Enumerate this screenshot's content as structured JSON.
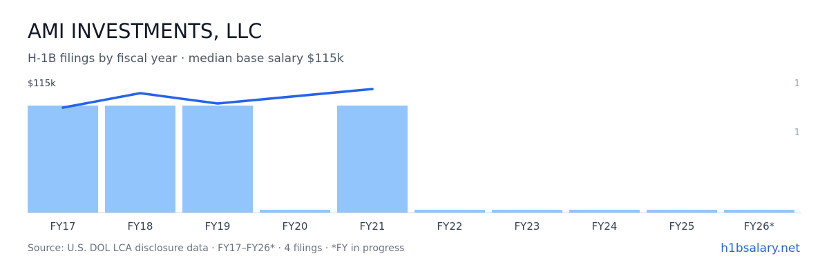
{
  "header": {
    "title": "AMI INVESTMENTS, LLC",
    "subtitle": "H-1B filings by fiscal year · median base salary $115k"
  },
  "footer": {
    "source": "Source: U.S. DOL LCA disclosure data · FY17–FY26* · 4 filings · *FY in progress",
    "brand": "h1bsalary.net"
  },
  "colors": {
    "bar": "#93c5fd",
    "line": "#2563eb",
    "axis": "#d1d5db",
    "tick_text": "#374151",
    "right_tick_text": "#9ca3af"
  },
  "chart_data": {
    "type": "bar",
    "categories": [
      "FY17",
      "FY18",
      "FY19",
      "FY20",
      "FY21",
      "FY22",
      "FY23",
      "FY24",
      "FY25",
      "FY26*"
    ],
    "series": [
      {
        "type": "bar",
        "axis": "right",
        "values": [
          1,
          1,
          1,
          0,
          1,
          0,
          0,
          0,
          0,
          0
        ]
      },
      {
        "type": "line",
        "axis": "left",
        "values": [
          108,
          115,
          110,
          null,
          117,
          null,
          null,
          null,
          null,
          null
        ]
      }
    ],
    "left_axis": {
      "tick_label": "$115k"
    },
    "right_axis": {
      "tick_labels": [
        "1",
        "1"
      ]
    }
  }
}
